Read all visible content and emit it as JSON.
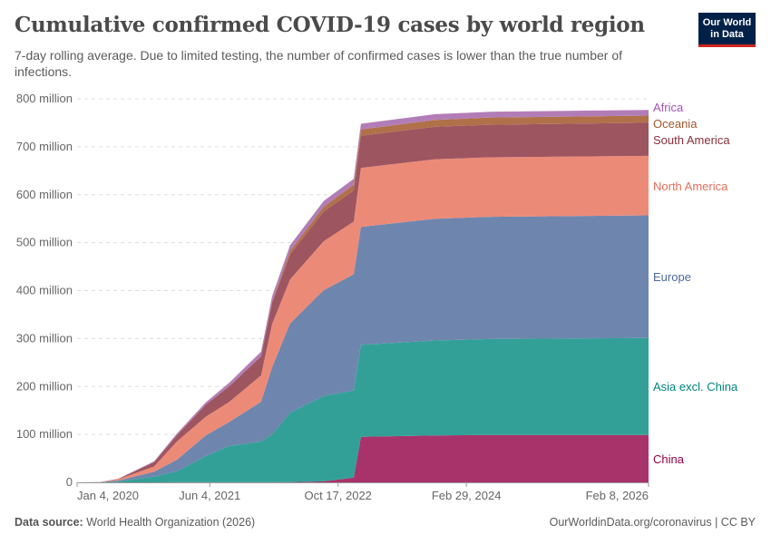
{
  "header": {
    "title": "Cumulative confirmed COVID-19 cases by world region",
    "subtitle": "7-day rolling average. Due to limited testing, the number of confirmed cases is lower than the true number of infections.",
    "logo_text": "Our World in Data"
  },
  "footer": {
    "source_label": "Data source:",
    "source_text": "World Health Organization (2026)",
    "right_text": "OurWorldinData.org/coronavirus | CC BY"
  },
  "chart_data": {
    "type": "area",
    "stacked": true,
    "title": "Cumulative confirmed COVID-19 cases by world region",
    "unit": "million",
    "ylim": [
      0,
      800
    ],
    "yticks": [
      0,
      100,
      200,
      300,
      400,
      500,
      600,
      700,
      800
    ],
    "ytick_labels": [
      "0",
      "100 million",
      "200 million",
      "300 million",
      "400 million",
      "500 million",
      "600 million",
      "700 million",
      "800 million"
    ],
    "xlim": [
      "2020-01-04",
      "2026-02-08"
    ],
    "xticks": [
      "2020-01-04",
      "2021-06-04",
      "2022-10-17",
      "2024-02-29",
      "2026-02-08"
    ],
    "xtick_labels": [
      "Jan 4, 2020",
      "Jun 4, 2021",
      "Oct 17, 2022",
      "Feb 29, 2024",
      "Feb 8, 2026"
    ],
    "grid": "horizontal-dashed",
    "legend": "right-inline-labels",
    "x": [
      "2020-01-04",
      "2020-04-01",
      "2020-06-11",
      "2020-10-30",
      "2021-01-27",
      "2021-05-20",
      "2021-08-20",
      "2021-12-21",
      "2022-02-02",
      "2022-04-13",
      "2022-08-22",
      "2022-12-17",
      "2023-01-14",
      "2023-10-31",
      "2024-06-01",
      "2026-02-08"
    ],
    "series": [
      {
        "name": "China",
        "color": "#a8336b",
        "label_color": "#970046",
        "values": [
          0,
          0.08,
          0.08,
          0.09,
          0.1,
          0.1,
          0.1,
          0.1,
          0.2,
          0.5,
          2,
          10,
          95,
          98,
          99,
          99
        ]
      },
      {
        "name": "Asia excl. China",
        "color": "#33a098",
        "label_color": "#00847e",
        "values": [
          0,
          0.1,
          1.5,
          12,
          23,
          55,
          76,
          85,
          100,
          145,
          178,
          182,
          192,
          198,
          200,
          202
        ]
      },
      {
        "name": "Europe",
        "color": "#6e86ae",
        "label_color": "#4c6a9c",
        "values": [
          0,
          0.4,
          2.0,
          10,
          24,
          43,
          50,
          83,
          140,
          186,
          221,
          242,
          246,
          254,
          255,
          256
        ]
      },
      {
        "name": "North America",
        "color": "#ec8a78",
        "label_color": "#e56e5a",
        "values": [
          0,
          0.2,
          2.4,
          11,
          38,
          39,
          42,
          55,
          90,
          92,
          102,
          110,
          123,
          124,
          124,
          124
        ]
      },
      {
        "name": "South America",
        "color": "#9d5560",
        "label_color": "#883039",
        "values": [
          0,
          0.01,
          1.0,
          9,
          13,
          25,
          33,
          40,
          45,
          52,
          62,
          65,
          67,
          68,
          68,
          69
        ]
      },
      {
        "name": "Oceania",
        "color": "#b0714a",
        "label_color": "#a2572c",
        "values": [
          0,
          0.005,
          0.01,
          0.03,
          0.05,
          0.1,
          0.2,
          0.5,
          2,
          7,
          10,
          12,
          13,
          14,
          15,
          15
        ]
      },
      {
        "name": "Africa",
        "color": "#b27db6",
        "label_color": "#a652ba",
        "values": [
          0,
          0.005,
          0.2,
          1.7,
          3.5,
          5,
          7,
          9,
          11,
          12,
          12,
          12,
          12,
          12,
          12,
          12
        ]
      }
    ]
  }
}
